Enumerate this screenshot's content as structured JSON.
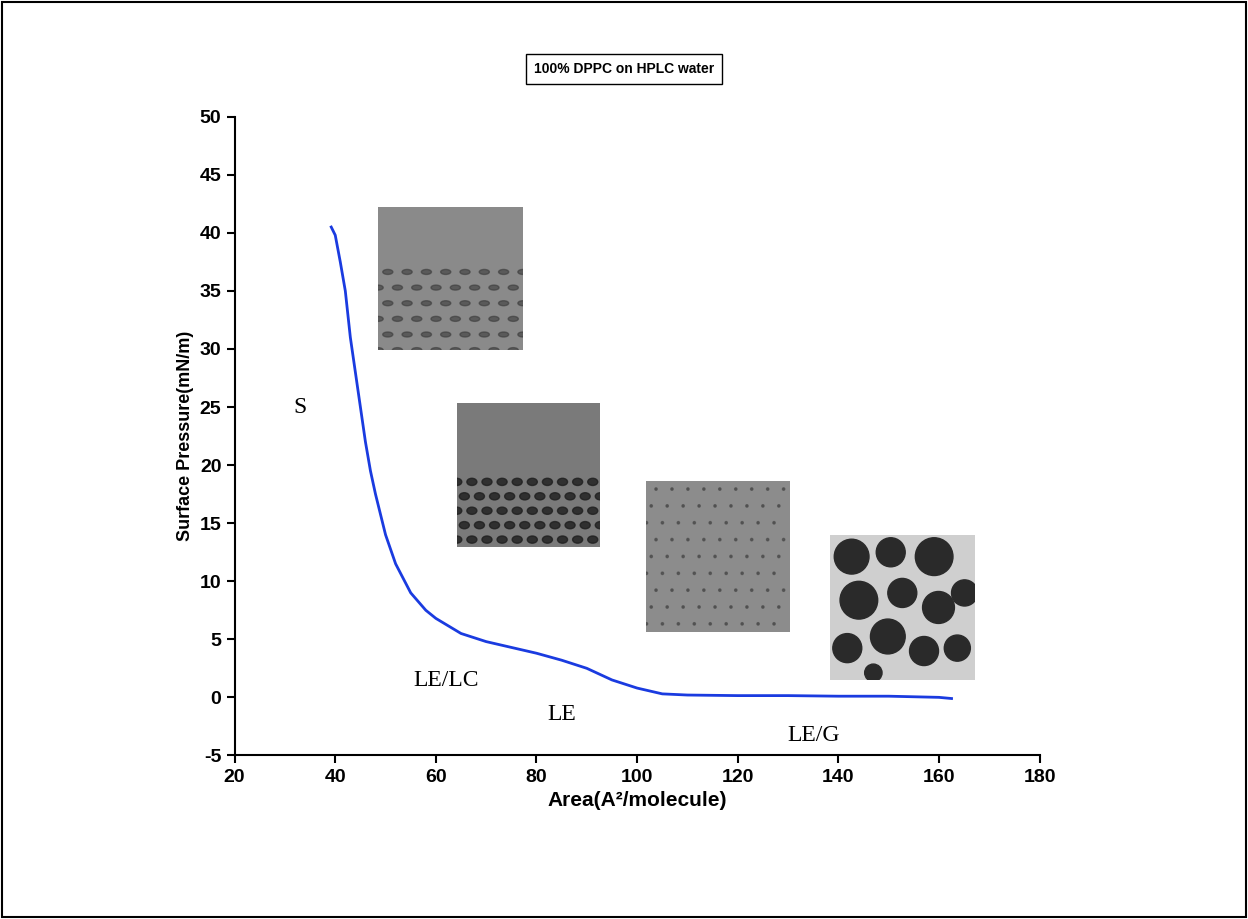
{
  "chart_data": {
    "type": "line",
    "title": "100% DPPC on HPLC water",
    "x_label": "Area(A²/molecule)",
    "y_label": "Surface Pressure(mN/m)",
    "annotations": [
      "S",
      "LE/LC",
      "LE",
      "LE/G"
    ],
    "x": [
      39.2,
      40,
      41,
      42,
      43,
      44,
      45,
      46,
      47,
      48,
      50,
      52,
      55,
      58,
      60,
      65,
      70,
      75,
      80,
      85,
      90,
      95,
      100,
      105,
      110,
      120,
      130,
      140,
      150,
      160,
      162.5
    ],
    "series": [
      {
        "name": "100% DPPC",
        "color": "#1a3be0",
        "values": [
          40.5,
          39.8,
          37.5,
          35,
          31,
          28,
          25,
          22,
          19.5,
          17.5,
          14,
          11.5,
          9,
          7.5,
          6.8,
          5.5,
          4.8,
          4.3,
          3.8,
          3.2,
          2.5,
          1.5,
          0.8,
          0.3,
          0.2,
          0.15,
          0.15,
          0.1,
          0.1,
          0.0,
          -0.1
        ]
      }
    ],
    "xlim": [
      20,
      180
    ],
    "xticks": [
      20,
      40,
      60,
      80,
      100,
      120,
      140,
      160,
      180
    ],
    "ylim": [
      -5,
      50
    ],
    "yticks": [
      -5,
      0,
      5,
      10,
      15,
      20,
      25,
      30,
      35,
      40,
      45,
      50
    ],
    "grid": false
  }
}
